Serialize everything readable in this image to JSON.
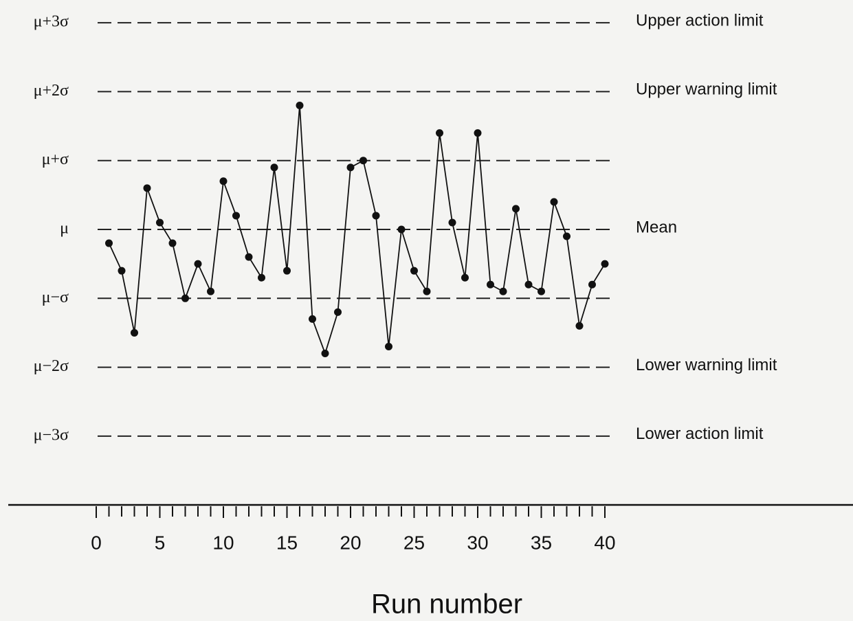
{
  "chart_data": {
    "type": "line",
    "x_label": "Run number",
    "x": [
      1,
      2,
      3,
      4,
      5,
      6,
      7,
      8,
      9,
      10,
      11,
      12,
      13,
      14,
      15,
      16,
      17,
      18,
      19,
      20,
      21,
      22,
      23,
      24,
      25,
      26,
      27,
      28,
      29,
      30,
      31,
      32,
      33,
      34,
      35,
      36,
      37,
      38,
      39,
      40
    ],
    "series": [
      {
        "color": "#111111",
        "values": [
          -0.2,
          -0.6,
          -1.5,
          0.6,
          0.1,
          -0.2,
          -1.0,
          -0.5,
          -0.9,
          0.7,
          0.2,
          -0.4,
          -0.7,
          0.9,
          -0.6,
          1.8,
          -1.3,
          -1.8,
          -1.2,
          0.9,
          1.0,
          0.2,
          -1.7,
          0.0,
          -0.6,
          -0.9,
          1.4,
          0.1,
          -0.7,
          1.4,
          -0.8,
          -0.9,
          0.3,
          -0.8,
          -0.9,
          0.4,
          -0.1,
          -1.4,
          -0.8,
          -0.5
        ]
      }
    ],
    "xlim": [
      0,
      40
    ],
    "xticks": [
      0,
      5,
      10,
      15,
      20,
      25,
      30,
      35,
      40
    ],
    "ylim": [
      -3.33,
      3.33
    ],
    "yticks": [
      {
        "value": 3,
        "label": "μ+3σ"
      },
      {
        "value": 2,
        "label": "μ+2σ"
      },
      {
        "value": 1,
        "label": "μ+σ"
      },
      {
        "value": 0,
        "label": "μ"
      },
      {
        "value": -1,
        "label": "μ−σ"
      },
      {
        "value": -2,
        "label": "μ−2σ"
      },
      {
        "value": -3,
        "label": "μ−3σ"
      }
    ],
    "limit_labels": [
      {
        "value": 3,
        "label": "Upper action limit"
      },
      {
        "value": 2,
        "label": "Upper warning limit"
      },
      {
        "value": 0,
        "label": "Mean"
      },
      {
        "value": -2,
        "label": "Lower warning limit"
      },
      {
        "value": -3,
        "label": "Lower action limit"
      }
    ],
    "grid": true
  }
}
